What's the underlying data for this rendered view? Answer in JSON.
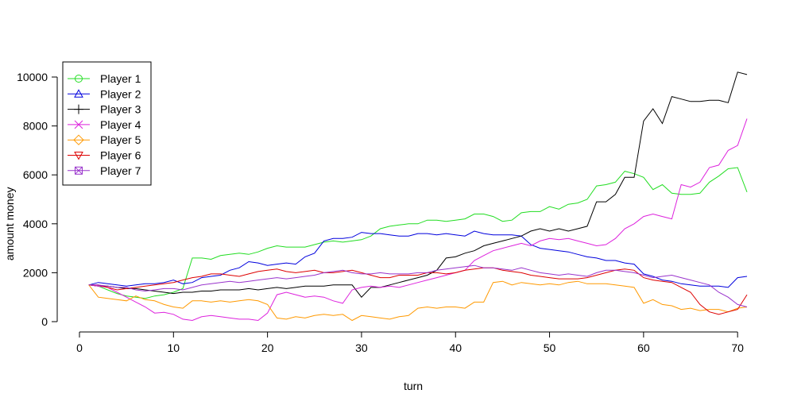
{
  "chart_data": {
    "type": "line",
    "title": "",
    "xlabel": "turn",
    "ylabel": "amount money",
    "xlim": [
      0,
      71
    ],
    "ylim": [
      0,
      10500
    ],
    "xticks": [
      0,
      10,
      20,
      30,
      40,
      50,
      60,
      70
    ],
    "yticks": [
      0,
      2000,
      4000,
      6000,
      8000,
      10000
    ],
    "grid": false,
    "legend_position": "top-left",
    "x": [
      1,
      2,
      3,
      4,
      5,
      6,
      7,
      8,
      9,
      10,
      11,
      12,
      13,
      14,
      15,
      16,
      17,
      18,
      19,
      20,
      21,
      22,
      23,
      24,
      25,
      26,
      27,
      28,
      29,
      30,
      31,
      32,
      33,
      34,
      35,
      36,
      37,
      38,
      39,
      40,
      41,
      42,
      43,
      44,
      45,
      46,
      47,
      48,
      49,
      50,
      51,
      52,
      53,
      54,
      55,
      56,
      57,
      58,
      59,
      60,
      61,
      62,
      63,
      64,
      65,
      66,
      67,
      68,
      69,
      70,
      71
    ],
    "series": [
      {
        "name": "Player 1",
        "color": "#22dd22",
        "marker": "circle",
        "values": [
          1500,
          1450,
          1300,
          1150,
          1050,
          1000,
          950,
          1050,
          1100,
          1200,
          1350,
          2600,
          2600,
          2550,
          2700,
          2750,
          2800,
          2750,
          2850,
          3000,
          3100,
          3050,
          3050,
          3050,
          3150,
          3250,
          3300,
          3250,
          3300,
          3350,
          3500,
          3800,
          3900,
          3950,
          4000,
          4000,
          4150,
          4150,
          4100,
          4150,
          4200,
          4400,
          4400,
          4300,
          4100,
          4150,
          4450,
          4500,
          4500,
          4700,
          4600,
          4800,
          4850,
          5000,
          5550,
          5600,
          5700,
          6150,
          6050,
          5900,
          5400,
          5600,
          5250,
          5200,
          5200,
          5250,
          5700,
          5950,
          6250,
          6300,
          5300
        ]
      },
      {
        "name": "Player 2",
        "color": "#0000dd",
        "marker": "triangle",
        "values": [
          1500,
          1600,
          1550,
          1500,
          1450,
          1500,
          1550,
          1550,
          1600,
          1700,
          1550,
          1600,
          1800,
          1850,
          1900,
          2100,
          2200,
          2450,
          2400,
          2300,
          2350,
          2400,
          2350,
          2650,
          2800,
          3300,
          3400,
          3400,
          3450,
          3650,
          3600,
          3600,
          3550,
          3500,
          3500,
          3600,
          3600,
          3550,
          3600,
          3550,
          3500,
          3700,
          3600,
          3550,
          3550,
          3550,
          3500,
          3150,
          3000,
          2950,
          2900,
          2850,
          2750,
          2650,
          2600,
          2500,
          2500,
          2400,
          2350,
          1950,
          1850,
          1700,
          1650,
          1550,
          1500,
          1450,
          1450,
          1450,
          1400,
          1800,
          1850
        ]
      },
      {
        "name": "Player 3",
        "color": "#000000",
        "marker": "plus",
        "values": [
          1500,
          1450,
          1450,
          1400,
          1350,
          1350,
          1300,
          1250,
          1200,
          1150,
          1200,
          1200,
          1250,
          1250,
          1300,
          1300,
          1300,
          1350,
          1300,
          1350,
          1400,
          1350,
          1400,
          1450,
          1450,
          1450,
          1500,
          1500,
          1500,
          1000,
          1400,
          1400,
          1500,
          1600,
          1700,
          1800,
          1900,
          2100,
          2600,
          2650,
          2800,
          2900,
          3100,
          3200,
          3300,
          3400,
          3500,
          3700,
          3800,
          3700,
          3800,
          3700,
          3800,
          3900,
          4900,
          4900,
          5200,
          5900,
          5900,
          8200,
          8700,
          8100,
          9200,
          9100,
          9000,
          9000,
          9050,
          9050,
          8950,
          10200,
          10100
        ]
      },
      {
        "name": "Player 4",
        "color": "#dd22dd",
        "marker": "x",
        "values": [
          1500,
          1450,
          1400,
          1200,
          1000,
          800,
          600,
          350,
          380,
          300,
          100,
          50,
          200,
          250,
          200,
          150,
          100,
          100,
          50,
          350,
          1100,
          1200,
          1100,
          1000,
          1050,
          1000,
          850,
          750,
          1300,
          1400,
          1450,
          1400,
          1450,
          1400,
          1500,
          1600,
          1700,
          1800,
          1900,
          2000,
          2100,
          2500,
          2700,
          2900,
          3000,
          3100,
          3200,
          3100,
          3300,
          3400,
          3350,
          3400,
          3300,
          3200,
          3100,
          3150,
          3400,
          3800,
          4000,
          4300,
          4400,
          4300,
          4200,
          5600,
          5500,
          5700,
          6300,
          6400,
          7000,
          7200,
          8300
        ]
      },
      {
        "name": "Player 5",
        "color": "#ff9900",
        "marker": "diamond",
        "values": [
          1500,
          1000,
          950,
          900,
          850,
          1050,
          900,
          850,
          700,
          600,
          550,
          850,
          850,
          800,
          850,
          800,
          850,
          900,
          850,
          700,
          150,
          100,
          200,
          150,
          250,
          300,
          250,
          300,
          50,
          250,
          200,
          150,
          100,
          200,
          250,
          550,
          600,
          550,
          600,
          600,
          550,
          800,
          800,
          1600,
          1650,
          1500,
          1600,
          1550,
          1500,
          1550,
          1500,
          1600,
          1650,
          1550,
          1550,
          1550,
          1500,
          1450,
          1400,
          750,
          900,
          700,
          650,
          500,
          550,
          450,
          500,
          500,
          400,
          550,
          600
        ]
      },
      {
        "name": "Player 6",
        "color": "#dd0000",
        "marker": "triangle-down",
        "values": [
          1500,
          1500,
          1400,
          1300,
          1350,
          1400,
          1450,
          1500,
          1550,
          1600,
          1700,
          1800,
          1850,
          1950,
          1950,
          1900,
          1850,
          1950,
          2050,
          2100,
          2150,
          2050,
          2000,
          2050,
          2100,
          2000,
          2000,
          2050,
          2100,
          2000,
          1900,
          1800,
          1800,
          1900,
          1900,
          1900,
          2000,
          2000,
          1950,
          2000,
          2100,
          2150,
          2200,
          2200,
          2100,
          2050,
          2000,
          1900,
          1850,
          1800,
          1750,
          1750,
          1750,
          1800,
          1900,
          2000,
          2100,
          2150,
          2100,
          1800,
          1700,
          1650,
          1600,
          1400,
          1200,
          700,
          400,
          300,
          400,
          500,
          1100
        ]
      },
      {
        "name": "Player 7",
        "color": "#9933cc",
        "marker": "box-x",
        "values": [
          1500,
          1500,
          1450,
          1400,
          1400,
          1300,
          1250,
          1300,
          1350,
          1350,
          1300,
          1400,
          1500,
          1550,
          1600,
          1650,
          1600,
          1650,
          1700,
          1750,
          1800,
          1750,
          1800,
          1850,
          1900,
          2000,
          2050,
          2100,
          2000,
          1950,
          1950,
          2000,
          1950,
          1950,
          1950,
          2000,
          2000,
          2100,
          2150,
          2200,
          2250,
          2300,
          2200,
          2200,
          2150,
          2100,
          2200,
          2100,
          2000,
          1950,
          1900,
          1950,
          1900,
          1850,
          2000,
          2100,
          2100,
          2050,
          2000,
          1900,
          1800,
          1850,
          1900,
          1800,
          1700,
          1600,
          1500,
          1200,
          1000,
          700,
          600
        ]
      }
    ]
  }
}
